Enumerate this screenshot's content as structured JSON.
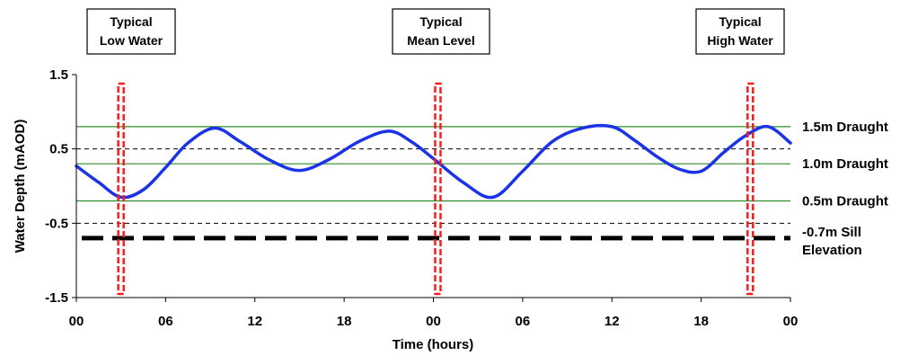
{
  "chart_data": {
    "type": "line",
    "title": "",
    "xlabel": "Time (hours)",
    "ylabel": "Water Depth (mAOD)",
    "x_ticks": [
      "00",
      "06",
      "12",
      "18",
      "00",
      "06",
      "12",
      "18",
      "00"
    ],
    "x_range_hours": [
      0,
      48
    ],
    "y_ticks": [
      "1.5",
      "0.5",
      "-0.5",
      "-1.5"
    ],
    "ylim": [
      -1.5,
      1.5
    ],
    "series": [
      {
        "color": "#1a33e6",
        "x": [
          0,
          1.5,
          3,
          4.5,
          6,
          7.5,
          9.3,
          11,
          13,
          15,
          17,
          19,
          21,
          22.5,
          24,
          26,
          28,
          30,
          32,
          34,
          36,
          37.5,
          39,
          40.5,
          42,
          43.5,
          45,
          46.5,
          48
        ],
        "y": [
          0.27,
          0.05,
          -0.15,
          -0.05,
          0.25,
          0.58,
          0.78,
          0.6,
          0.35,
          0.21,
          0.36,
          0.6,
          0.74,
          0.6,
          0.37,
          0.05,
          -0.15,
          0.2,
          0.6,
          0.78,
          0.8,
          0.62,
          0.4,
          0.23,
          0.2,
          0.45,
          0.68,
          0.8,
          0.58
        ]
      }
    ],
    "reference_lines": [
      {
        "label": "1.5m Draught",
        "y": 0.8,
        "color": "#2e8b2e",
        "style": "solid"
      },
      {
        "label": "1.0m Draught",
        "y": 0.3,
        "color": "#2e8b2e",
        "style": "solid"
      },
      {
        "label": "0.5m Draught",
        "y": -0.2,
        "color": "#2e8b2e",
        "style": "solid"
      },
      {
        "y": 0.5,
        "color": "#000000",
        "style": "dashed"
      },
      {
        "y": -0.5,
        "color": "#000000",
        "style": "dashed"
      },
      {
        "label_lines": [
          "-0.7m Sill",
          "Elevation"
        ],
        "y": -0.7,
        "color": "#000000",
        "style": "heavy-dashed"
      }
    ],
    "markers": [
      {
        "label_lines": [
          "Typical",
          "Low Water"
        ],
        "x": 3,
        "color": "#ff1a1a"
      },
      {
        "label_lines": [
          "Typical",
          "Mean Level"
        ],
        "x": 24.3,
        "color": "#ff1a1a"
      },
      {
        "label_lines": [
          "Typical",
          "High Water"
        ],
        "x": 45.3,
        "color": "#ff1a1a"
      }
    ],
    "grid": false,
    "legend": "none"
  }
}
